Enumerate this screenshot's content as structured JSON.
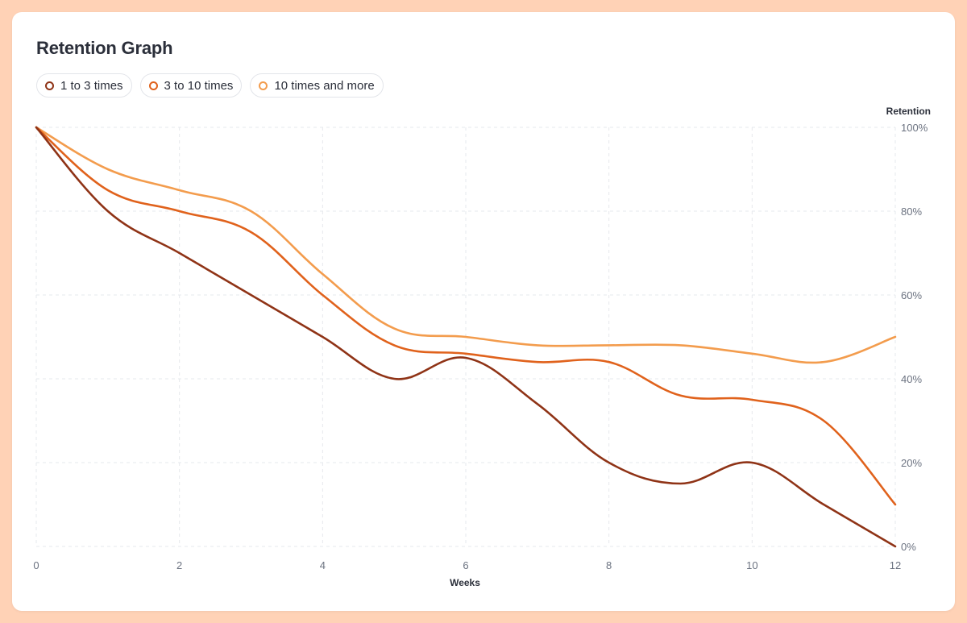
{
  "chart_data": {
    "type": "line",
    "title": "Retention Graph",
    "xlabel": "Weeks",
    "ylabel": "Retention",
    "x": [
      0,
      1,
      2,
      3,
      4,
      5,
      6,
      7,
      8,
      9,
      10,
      11,
      12
    ],
    "x_ticks": [
      0,
      2,
      4,
      6,
      8,
      10,
      12
    ],
    "y_ticks": [
      0,
      20,
      40,
      60,
      80,
      100
    ],
    "y_tick_labels": [
      "0%",
      "20%",
      "40%",
      "60%",
      "80%",
      "100%"
    ],
    "xlim": [
      0,
      12
    ],
    "ylim": [
      0,
      100
    ],
    "grid": true,
    "legend_position": "top-left",
    "y_axis_side": "right",
    "series": [
      {
        "name": "1 to 3 times",
        "color": "#8f3316",
        "values": [
          100,
          80,
          70,
          60,
          50,
          40,
          45,
          34,
          20,
          15,
          20,
          10,
          0
        ]
      },
      {
        "name": "3 to 10 times",
        "color": "#e0621c",
        "values": [
          100,
          85,
          80,
          75,
          60,
          48,
          46,
          44,
          44,
          36,
          35,
          30,
          10
        ]
      },
      {
        "name": "10 times and more",
        "color": "#f39c4d",
        "values": [
          100,
          90,
          85,
          80,
          65,
          52,
          50,
          48,
          48,
          48,
          46,
          44,
          50
        ]
      }
    ]
  }
}
